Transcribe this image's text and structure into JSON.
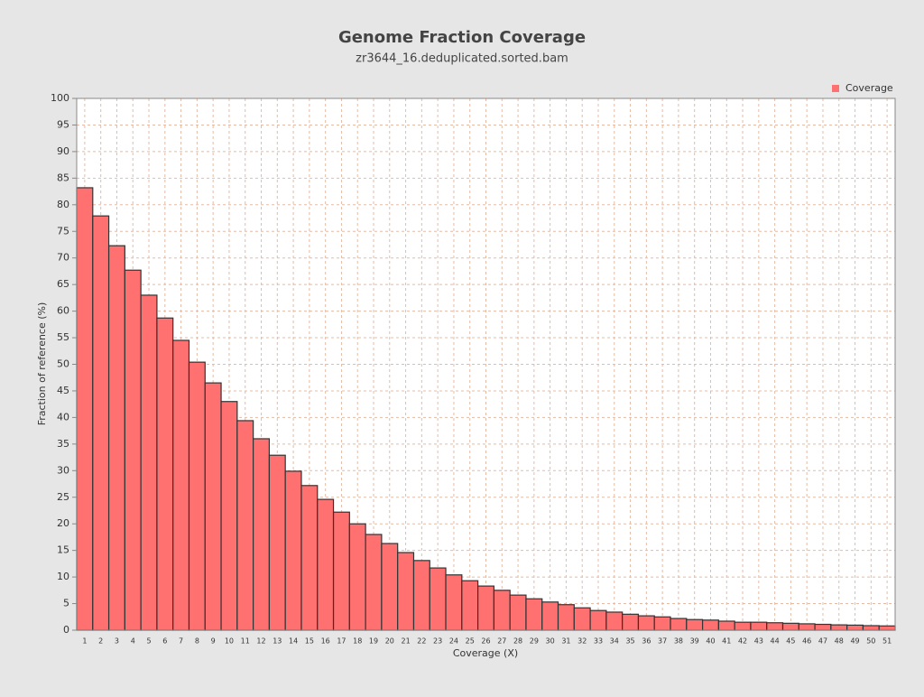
{
  "chart_data": {
    "type": "bar",
    "title": "Genome Fraction Coverage",
    "subtitle": "zr3644_16.deduplicated.sorted.bam",
    "x_label": "Coverage (X)",
    "y_label": "Fraction of reference (%)",
    "categories": [
      "1",
      "2",
      "3",
      "4",
      "5",
      "6",
      "7",
      "8",
      "9",
      "10",
      "11",
      "12",
      "13",
      "14",
      "15",
      "16",
      "17",
      "18",
      "19",
      "20",
      "21",
      "22",
      "23",
      "24",
      "25",
      "26",
      "27",
      "28",
      "29",
      "30",
      "31",
      "32",
      "33",
      "34",
      "35",
      "36",
      "37",
      "38",
      "39",
      "40",
      "41",
      "42",
      "43",
      "44",
      "45",
      "46",
      "47",
      "48",
      "49",
      "50",
      "51"
    ],
    "series": [
      {
        "name": "Coverage",
        "color": "#ff7070",
        "values": [
          83.2,
          77.9,
          72.3,
          67.7,
          63.0,
          58.7,
          54.5,
          50.4,
          46.5,
          43.0,
          39.4,
          36.0,
          32.9,
          29.9,
          27.2,
          24.6,
          22.2,
          20.0,
          18.0,
          16.3,
          14.6,
          13.1,
          11.7,
          10.4,
          9.3,
          8.3,
          7.5,
          6.6,
          5.9,
          5.3,
          4.8,
          4.2,
          3.7,
          3.4,
          3.0,
          2.7,
          2.5,
          2.2,
          2.0,
          1.9,
          1.7,
          1.5,
          1.5,
          1.4,
          1.3,
          1.2,
          1.1,
          1.0,
          0.95,
          0.85,
          0.8
        ]
      }
    ],
    "ylim": [
      0,
      100
    ],
    "yticks": [
      0,
      5,
      10,
      15,
      20,
      25,
      30,
      35,
      40,
      45,
      50,
      55,
      60,
      65,
      70,
      75,
      80,
      85,
      90,
      95,
      100
    ],
    "grid": true,
    "legend": "upper right"
  }
}
